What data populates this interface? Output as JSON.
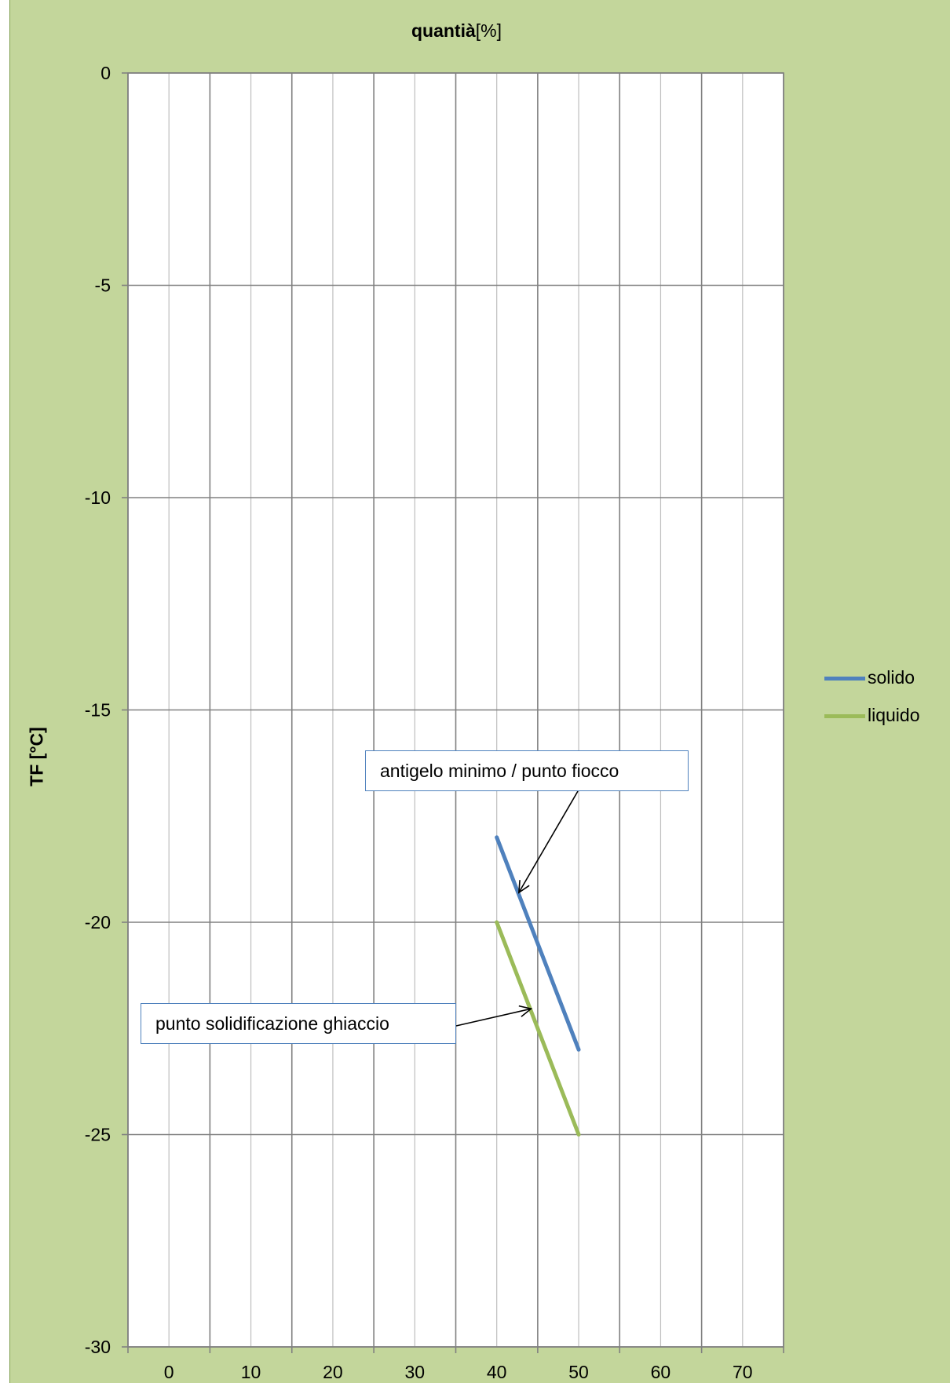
{
  "chart_data": {
    "type": "line",
    "title_bold": "quantià",
    "title_rest": "[%]",
    "ylabel": "TF [°C]",
    "xlabel": "",
    "xlim": [
      -5,
      75
    ],
    "ylim": [
      -30,
      0
    ],
    "x_ticks": [
      0,
      10,
      20,
      30,
      40,
      50,
      60,
      70
    ],
    "y_ticks": [
      0,
      -5,
      -10,
      -15,
      -20,
      -25,
      -30
    ],
    "grid": true,
    "legend_position": "right",
    "series": [
      {
        "name": "solido",
        "color": "#4f81bd",
        "x": [
          40,
          50
        ],
        "y": [
          -18,
          -23
        ]
      },
      {
        "name": "liquido",
        "color": "#9bbb59",
        "x": [
          40,
          50
        ],
        "y": [
          -20,
          -25
        ]
      }
    ],
    "annotations": [
      {
        "text": "antigelo minimo / punto fiocco",
        "target_series": "solido",
        "target": [
          42.7,
          -19.3
        ]
      },
      {
        "text": "punto solidificazione ghiaccio",
        "target_series": "liquido",
        "target": [
          44,
          -22
        ]
      }
    ]
  }
}
